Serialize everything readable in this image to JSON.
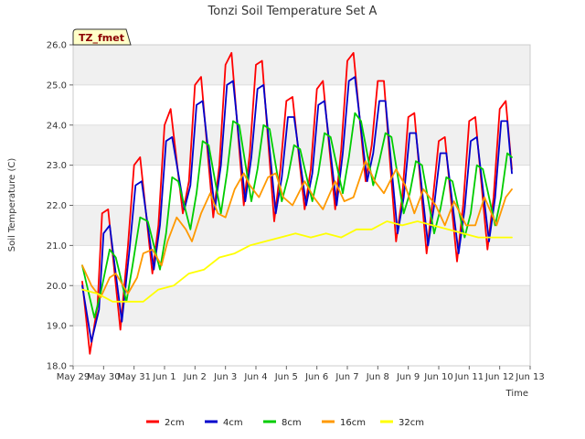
{
  "chart_data": {
    "type": "line",
    "title": "Tonzi Soil Temperature Set A",
    "xlabel": "Time",
    "ylabel": "Soil Temperature (C)",
    "badge": "TZ_fmet",
    "ylim": [
      18.0,
      26.0
    ],
    "xlim": [
      0,
      15
    ],
    "yticks": [
      "18.0",
      "19.0",
      "20.0",
      "21.0",
      "22.0",
      "23.0",
      "24.0",
      "25.0",
      "26.0"
    ],
    "xticks": [
      "May 29",
      "May 30",
      "May 31",
      "Jun 1",
      "Jun 2",
      "Jun 3",
      "Jun 4",
      "Jun 5",
      "Jun 6",
      "Jun 7",
      "Jun 8",
      "Jun 9",
      "Jun 10",
      "Jun 11",
      "Jun 12",
      "Jun 13"
    ],
    "grid": true,
    "legend_position": "bottom",
    "series": [
      {
        "name": "2cm",
        "color": "#ff0000",
        "x": [
          0.3,
          0.55,
          0.8,
          0.95,
          1.15,
          1.55,
          1.8,
          2.0,
          2.2,
          2.6,
          2.8,
          3.0,
          3.2,
          3.6,
          3.8,
          4.0,
          4.2,
          4.6,
          4.8,
          5.0,
          5.2,
          5.6,
          5.8,
          6.0,
          6.2,
          6.6,
          6.8,
          7.0,
          7.2,
          7.6,
          7.8,
          8.0,
          8.2,
          8.6,
          8.8,
          9.0,
          9.2,
          9.6,
          9.8,
          10.0,
          10.2,
          10.6,
          10.8,
          11.0,
          11.2,
          11.6,
          11.8,
          12.0,
          12.2,
          12.6,
          12.8,
          13.0,
          13.2,
          13.6,
          13.8,
          14.0,
          14.2,
          14.4
        ],
        "y": [
          20.1,
          18.3,
          19.5,
          21.8,
          21.9,
          18.9,
          21.0,
          23.0,
          23.2,
          20.3,
          21.5,
          24.0,
          24.4,
          21.8,
          22.6,
          25.0,
          25.2,
          21.7,
          23.0,
          25.5,
          25.8,
          22.0,
          23.3,
          25.5,
          25.6,
          21.6,
          22.9,
          24.6,
          24.7,
          21.9,
          22.9,
          24.9,
          25.1,
          21.9,
          23.4,
          25.6,
          25.8,
          22.6,
          23.5,
          25.1,
          25.1,
          21.1,
          22.2,
          24.2,
          24.3,
          20.8,
          22.1,
          23.6,
          23.7,
          20.6,
          22.0,
          24.1,
          24.2,
          20.9,
          22.2,
          24.4,
          24.6,
          22.9
        ]
      },
      {
        "name": "4cm",
        "color": "#0000cc",
        "x": [
          0.3,
          0.6,
          0.85,
          1.0,
          1.2,
          1.6,
          1.85,
          2.05,
          2.25,
          2.65,
          2.85,
          3.05,
          3.25,
          3.65,
          3.85,
          4.05,
          4.25,
          4.65,
          4.85,
          5.05,
          5.25,
          5.65,
          5.85,
          6.05,
          6.25,
          6.65,
          6.85,
          7.05,
          7.25,
          7.65,
          7.85,
          8.05,
          8.25,
          8.65,
          8.85,
          9.05,
          9.25,
          9.65,
          9.85,
          10.05,
          10.25,
          10.65,
          10.85,
          11.05,
          11.25,
          11.65,
          11.85,
          12.05,
          12.25,
          12.65,
          12.85,
          13.05,
          13.25,
          13.65,
          13.85,
          14.05,
          14.25,
          14.4
        ],
        "y": [
          20.0,
          18.6,
          19.4,
          21.3,
          21.5,
          19.1,
          20.9,
          22.5,
          22.6,
          20.4,
          21.5,
          23.6,
          23.7,
          21.9,
          22.5,
          24.5,
          24.6,
          21.9,
          23.0,
          25.0,
          25.1,
          22.1,
          23.2,
          24.9,
          25.0,
          21.8,
          22.7,
          24.2,
          24.2,
          22.0,
          22.8,
          24.5,
          24.6,
          22.0,
          23.3,
          25.1,
          25.2,
          22.6,
          23.3,
          24.6,
          24.6,
          21.3,
          22.2,
          23.8,
          23.8,
          21.0,
          22.0,
          23.3,
          23.3,
          20.8,
          21.9,
          23.6,
          23.7,
          21.1,
          22.2,
          24.1,
          24.1,
          22.8
        ]
      },
      {
        "name": "8cm",
        "color": "#00cc00",
        "x": [
          0.3,
          0.7,
          0.9,
          1.2,
          1.4,
          1.75,
          1.95,
          2.2,
          2.45,
          2.85,
          3.05,
          3.25,
          3.45,
          3.85,
          4.05,
          4.25,
          4.45,
          4.85,
          5.05,
          5.25,
          5.45,
          5.85,
          6.05,
          6.25,
          6.45,
          6.85,
          7.05,
          7.25,
          7.45,
          7.85,
          8.05,
          8.25,
          8.45,
          8.85,
          9.05,
          9.25,
          9.45,
          9.85,
          10.05,
          10.25,
          10.45,
          10.85,
          11.05,
          11.25,
          11.45,
          11.85,
          12.05,
          12.25,
          12.45,
          12.85,
          13.05,
          13.25,
          13.45,
          13.85,
          14.05,
          14.25,
          14.4
        ],
        "y": [
          20.5,
          19.2,
          19.8,
          20.9,
          20.7,
          19.6,
          20.5,
          21.7,
          21.6,
          20.4,
          21.3,
          22.7,
          22.6,
          21.4,
          22.3,
          23.6,
          23.5,
          21.8,
          22.8,
          24.1,
          24.0,
          22.1,
          22.9,
          24.0,
          23.9,
          22.1,
          22.7,
          23.5,
          23.4,
          22.1,
          22.8,
          23.8,
          23.7,
          22.3,
          23.2,
          24.3,
          24.1,
          22.5,
          23.1,
          23.8,
          23.7,
          21.8,
          22.3,
          23.1,
          23.0,
          21.3,
          21.9,
          22.7,
          22.6,
          21.2,
          21.8,
          23.0,
          22.9,
          21.5,
          22.2,
          23.3,
          23.2
        ]
      },
      {
        "name": "16cm",
        "color": "#ff9900",
        "x": [
          0.3,
          0.6,
          0.9,
          1.2,
          1.4,
          1.8,
          2.1,
          2.3,
          2.6,
          2.9,
          3.1,
          3.4,
          3.7,
          3.9,
          4.2,
          4.5,
          4.75,
          5.0,
          5.3,
          5.6,
          5.8,
          6.1,
          6.4,
          6.65,
          6.9,
          7.2,
          7.6,
          7.9,
          8.2,
          8.6,
          8.9,
          9.2,
          9.6,
          9.9,
          10.2,
          10.6,
          10.9,
          11.2,
          11.5,
          11.9,
          12.2,
          12.5,
          12.9,
          13.2,
          13.5,
          13.9,
          14.2,
          14.4
        ],
        "y": [
          20.5,
          20.0,
          19.7,
          20.2,
          20.3,
          19.8,
          20.2,
          20.8,
          20.9,
          20.5,
          21.1,
          21.7,
          21.4,
          21.1,
          21.8,
          22.3,
          21.8,
          21.7,
          22.4,
          22.8,
          22.5,
          22.2,
          22.7,
          22.8,
          22.2,
          22.0,
          22.6,
          22.2,
          21.9,
          22.6,
          22.1,
          22.2,
          23.1,
          22.6,
          22.3,
          22.9,
          22.5,
          21.8,
          22.4,
          22.0,
          21.5,
          22.1,
          21.5,
          21.5,
          22.2,
          21.5,
          22.2,
          22.4
        ]
      },
      {
        "name": "32cm",
        "color": "#ffff00",
        "x": [
          0.3,
          0.8,
          1.3,
          1.8,
          2.3,
          2.8,
          3.3,
          3.8,
          4.3,
          4.8,
          5.3,
          5.8,
          6.3,
          6.8,
          7.3,
          7.8,
          8.3,
          8.8,
          9.3,
          9.8,
          10.3,
          10.8,
          11.3,
          11.8,
          12.3,
          12.8,
          13.3,
          13.8,
          14.4
        ],
        "y": [
          19.9,
          19.8,
          19.6,
          19.6,
          19.6,
          19.9,
          20.0,
          20.3,
          20.4,
          20.7,
          20.8,
          21.0,
          21.1,
          21.2,
          21.3,
          21.2,
          21.3,
          21.2,
          21.4,
          21.4,
          21.6,
          21.5,
          21.6,
          21.5,
          21.4,
          21.3,
          21.2,
          21.2,
          21.2
        ]
      }
    ]
  }
}
